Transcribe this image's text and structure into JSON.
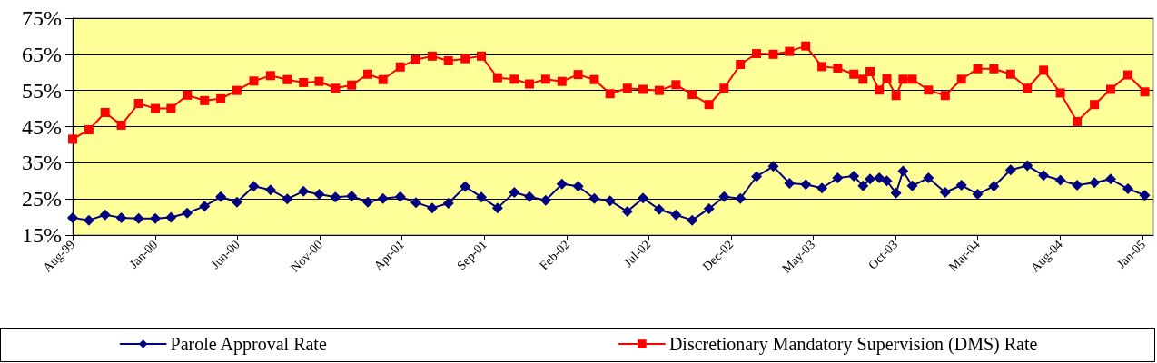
{
  "chart_data": {
    "type": "line",
    "x": [
      "1999-08-01",
      "1999-08-31",
      "1999-09-30",
      "1999-10-30",
      "1999-12-01",
      "2000-01-01",
      "2000-01-30",
      "2000-02-29",
      "2000-04-01",
      "2000-05-01",
      "2000-05-31",
      "2000-07-01",
      "2000-08-01",
      "2000-09-01",
      "2000-10-01",
      "2000-10-30",
      "2000-11-29",
      "2000-12-29",
      "2001-01-28",
      "2001-02-25",
      "2001-03-29",
      "2001-04-27",
      "2001-05-27",
      "2001-06-26",
      "2001-07-27",
      "2001-08-26",
      "2001-09-25",
      "2001-10-26",
      "2001-11-23",
      "2001-12-23",
      "2002-01-22",
      "2002-02-21",
      "2002-03-23",
      "2002-04-21",
      "2002-05-23",
      "2002-06-21",
      "2002-07-21",
      "2002-08-21",
      "2002-09-20",
      "2002-10-21",
      "2002-11-18",
      "2002-12-18",
      "2003-01-17",
      "2003-02-17",
      "2003-03-19",
      "2003-04-18",
      "2003-05-18",
      "2003-06-16",
      "2003-07-16",
      "2003-08-02",
      "2003-08-15",
      "2003-09-01",
      "2003-09-15",
      "2003-10-02",
      "2003-10-15",
      "2003-11-01",
      "2003-12-01",
      "2004-01-01",
      "2004-01-31",
      "2004-03-01",
      "2004-03-31",
      "2004-05-01",
      "2004-06-01",
      "2004-07-01",
      "2004-08-01",
      "2004-09-01",
      "2004-10-03",
      "2004-11-02",
      "2004-12-04",
      "2005-01-04"
    ],
    "series": [
      {
        "name": "Parole Approval Rate",
        "color": "#000080",
        "marker": "diamond",
        "values": [
          19.8,
          19.1,
          20.6,
          19.8,
          19.6,
          19.6,
          19.9,
          21.1,
          23.0,
          25.6,
          24.1,
          28.5,
          27.5,
          25.0,
          27.1,
          26.3,
          25.5,
          25.8,
          24.1,
          25.1,
          25.6,
          24.0,
          22.5,
          23.8,
          28.4,
          25.5,
          22.5,
          26.8,
          25.6,
          24.6,
          29.1,
          28.5,
          25.1,
          24.5,
          21.5,
          25.2,
          22.1,
          20.6,
          19.1,
          22.3,
          25.6,
          25.1,
          31.2,
          34.0,
          29.3,
          29.0,
          28.0,
          30.8,
          31.3,
          28.6,
          30.5,
          30.8,
          30.0,
          26.6,
          32.7,
          28.6,
          30.8,
          26.8,
          28.8,
          26.3,
          28.5,
          33.0,
          34.2,
          31.5,
          30.2,
          28.8,
          29.5,
          30.5,
          27.8,
          26.0
        ]
      },
      {
        "name": "Discretionary Mandatory Supervision (DMS) Rate",
        "color": "#ff0000",
        "marker": "square",
        "values": [
          41.5,
          44.1,
          48.9,
          45.4,
          51.4,
          50.0,
          50.0,
          53.7,
          52.2,
          52.7,
          55.0,
          57.6,
          59.1,
          58.0,
          57.2,
          57.5,
          55.6,
          56.5,
          59.5,
          58.0,
          61.5,
          63.5,
          64.5,
          63.2,
          63.8,
          64.5,
          58.5,
          58.1,
          56.8,
          58.1,
          57.5,
          59.4,
          58.0,
          54.1,
          55.6,
          55.3,
          55.0,
          56.6,
          53.9,
          51.1,
          55.6,
          62.2,
          65.2,
          65.0,
          65.8,
          67.3,
          61.6,
          61.2,
          59.5,
          58.1,
          60.2,
          55.1,
          58.3,
          53.6,
          58.1,
          58.1,
          55.1,
          53.6,
          58.1,
          61.0,
          61.0,
          59.5,
          55.6,
          60.6,
          54.3,
          46.4,
          51.1,
          55.3,
          59.3,
          54.6
        ]
      }
    ],
    "xlim": [
      "1999-08-01",
      "2005-01-20"
    ],
    "xticks": [
      {
        "value": "1999-08",
        "label": "Aug-99"
      },
      {
        "value": "2000-01",
        "label": "Jan-00"
      },
      {
        "value": "2000-06",
        "label": "Jun-00"
      },
      {
        "value": "2000-11",
        "label": "Nov-00"
      },
      {
        "value": "2001-04",
        "label": "Apr-01"
      },
      {
        "value": "2001-09",
        "label": "Sep-01"
      },
      {
        "value": "2002-02",
        "label": "Feb-02"
      },
      {
        "value": "2002-07",
        "label": "Jul-02"
      },
      {
        "value": "2002-12",
        "label": "Dec-02"
      },
      {
        "value": "2003-05",
        "label": "May-03"
      },
      {
        "value": "2003-10",
        "label": "Oct-03"
      },
      {
        "value": "2004-03",
        "label": "Mar-04"
      },
      {
        "value": "2004-08",
        "label": "Aug-04"
      },
      {
        "value": "2005-01",
        "label": "Jan-05"
      }
    ],
    "ylim": [
      15,
      75
    ],
    "yticks": [
      {
        "value": 15,
        "label": "15%"
      },
      {
        "value": 25,
        "label": "25%"
      },
      {
        "value": 35,
        "label": "35%"
      },
      {
        "value": 45,
        "label": "45%"
      },
      {
        "value": 55,
        "label": "55%"
      },
      {
        "value": 65,
        "label": "65%"
      },
      {
        "value": 75,
        "label": "75%"
      }
    ],
    "grid": "y",
    "legend": "bottom",
    "line_style": "solid"
  }
}
